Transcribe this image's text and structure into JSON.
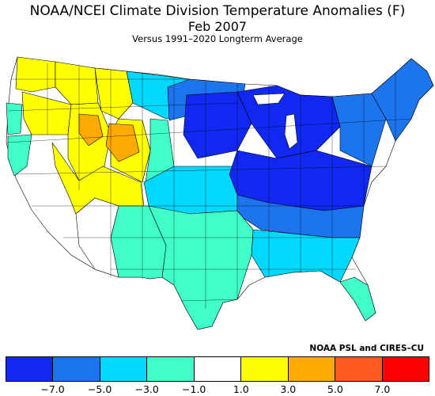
{
  "title": "NOAA/NCEI Climate Division Temperature Anomalies (F)",
  "subtitle": "Feb 2007",
  "caption": "Versus 1991–2020 Longterm Average",
  "credit": "NOAA PSL and CIRES–CU",
  "legend": {
    "bins": [
      {
        "range": "< -7.0",
        "color": "#1028f0"
      },
      {
        "range": "-7.0 to -5.0",
        "color": "#1c74ee"
      },
      {
        "range": "-5.0 to -3.0",
        "color": "#00d8ff"
      },
      {
        "range": "-3.0 to -1.0",
        "color": "#40ffc8"
      },
      {
        "range": "-1.0 to 1.0",
        "color": "#ffffff"
      },
      {
        "range": "1.0 to 3.0",
        "color": "#ffff00"
      },
      {
        "range": "3.0 to 5.0",
        "color": "#ffaa00"
      },
      {
        "range": "5.0 to 7.0",
        "color": "#ff5a1e"
      },
      {
        "range": "> 7.0",
        "color": "#ff0000"
      }
    ],
    "tick_labels": [
      "−7.0",
      "−5.0",
      "−3.0",
      "−1.0",
      "1.0",
      "3.0",
      "5.0",
      "7.0"
    ]
  },
  "map": {
    "regions": [
      {
        "name": "washington-west",
        "bin": 5
      },
      {
        "name": "washington-east",
        "bin": 5
      },
      {
        "name": "oregon-coast",
        "bin": 4
      },
      {
        "name": "oregon-east",
        "bin": 5
      },
      {
        "name": "idaho",
        "bin": 5
      },
      {
        "name": "idaho-south",
        "bin": 6
      },
      {
        "name": "montana-west",
        "bin": 5
      },
      {
        "name": "montana-east",
        "bin": 2
      },
      {
        "name": "wyoming",
        "bin": 6
      },
      {
        "name": "utah-nevada-east",
        "bin": 5
      },
      {
        "name": "california-north",
        "bin": 4
      },
      {
        "name": "california-south",
        "bin": 4
      },
      {
        "name": "arizona",
        "bin": 4
      },
      {
        "name": "new-mexico",
        "bin": 4
      },
      {
        "name": "colorado",
        "bin": 3
      },
      {
        "name": "north-dakota",
        "bin": 1
      },
      {
        "name": "minnesota",
        "bin": 0
      },
      {
        "name": "great-lakes",
        "bin": 0
      },
      {
        "name": "ohio-valley",
        "bin": 0
      },
      {
        "name": "northeast",
        "bin": 1
      },
      {
        "name": "new-england",
        "bin": 1
      },
      {
        "name": "kansas-oklahoma",
        "bin": 2
      },
      {
        "name": "texas",
        "bin": 3
      },
      {
        "name": "south-central",
        "bin": 3
      },
      {
        "name": "southeast",
        "bin": 2
      },
      {
        "name": "florida",
        "bin": 2
      }
    ]
  }
}
